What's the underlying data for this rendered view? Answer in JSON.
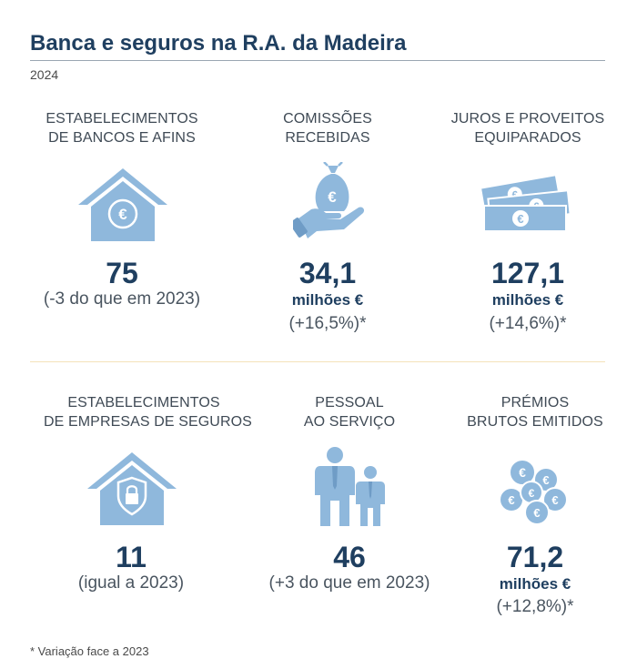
{
  "title": "Banca e seguros na R.A. da Madeira",
  "year": "2024",
  "cards": [
    {
      "caption_1": "ESTABELECIMENTOS",
      "caption_2": "DE BANCOS E AFINS",
      "value": "75",
      "unit": "",
      "change": "(-3 do que em 2023)",
      "icon": "house-euro-icon"
    },
    {
      "caption_1": "COMISSÕES",
      "caption_2": "RECEBIDAS",
      "value": "34,1",
      "unit": "milhões €",
      "change": "(+16,5%)*",
      "icon": "hand-money-bag-icon"
    },
    {
      "caption_1": "JUROS E PROVEITOS",
      "caption_2": "EQUIPARADOS",
      "value": "127,1",
      "unit": "milhões €",
      "change": "(+14,6%)*",
      "icon": "banknotes-icon"
    },
    {
      "caption_1": "ESTABELECIMENTOS",
      "caption_2": "DE EMPRESAS DE SEGUROS",
      "value": "11",
      "unit": "",
      "change": "(igual a 2023)",
      "icon": "house-shield-lock-icon"
    },
    {
      "caption_1": "PESSOAL",
      "caption_2": "AO SERVIÇO",
      "value": "46",
      "unit": "",
      "change": "(+3 do que em 2023)",
      "icon": "staff-people-icon"
    },
    {
      "caption_1": "PRÉMIOS",
      "caption_2": "BRUTOS EMITIDOS",
      "value": "71,2",
      "unit": "milhões €",
      "change": "(+12,8%)*",
      "icon": "euro-coins-icon"
    }
  ],
  "footnote": "* Variação face a 2023",
  "colors": {
    "title": "#1f3f60",
    "icon": "#8fb8dc",
    "icon_dark": "#6f9cc6",
    "separator": "#f4e3b9"
  }
}
